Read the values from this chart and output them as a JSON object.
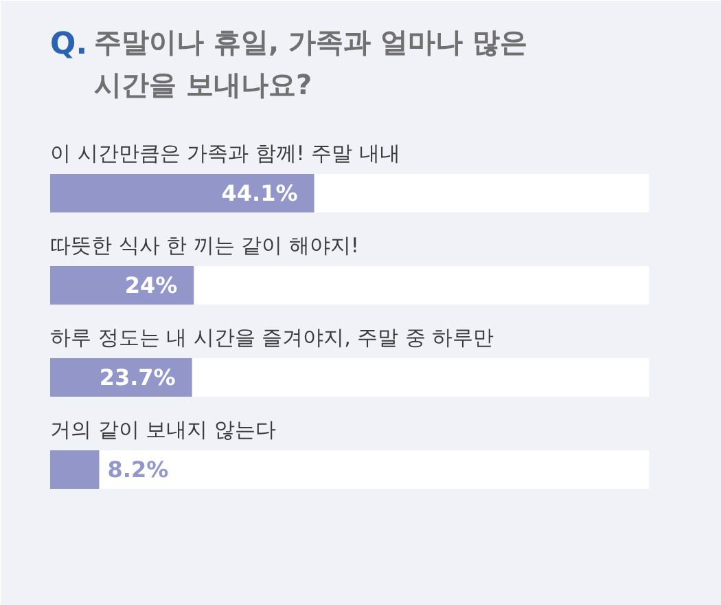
{
  "chart_data": {
    "type": "bar",
    "orientation": "horizontal",
    "title": "Q. 주말이나 휴일, 가족과 얼마나 많은\n시간을 보내나요?",
    "categories": [
      "이 시간만큼은 가족과 함께! 주말 내내",
      "따뜻한 식사 한 끼는 같이 해야지!",
      "하루 정도는 내 시간을 즐겨야지, 주말 중 하루만",
      "거의 같이 보내지 않는다"
    ],
    "values": [
      44.1,
      24,
      23.7,
      8.2
    ],
    "value_labels": [
      "44.1%",
      "24%",
      "23.7%",
      "8.2%"
    ],
    "color": "#9396c9",
    "xlim": [
      0,
      100
    ],
    "grid": false
  }
}
